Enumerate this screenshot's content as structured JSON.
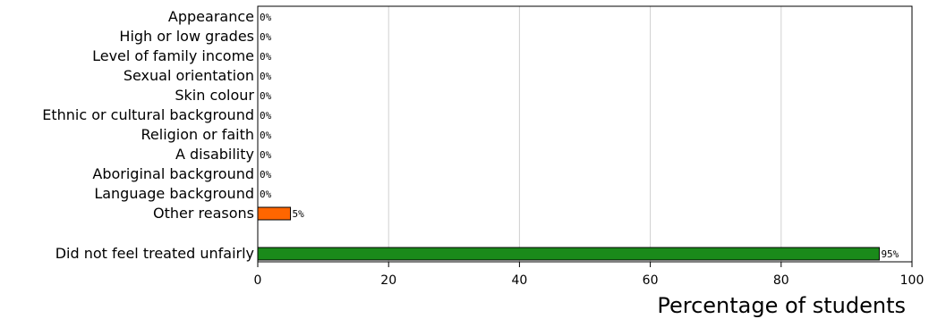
{
  "chart_data": {
    "type": "bar",
    "orientation": "horizontal",
    "categories": [
      "Appearance",
      "High or low grades",
      "Level of family income",
      "Sexual orientation",
      "Skin colour",
      "Ethnic or cultural background",
      "Religion or faith",
      "A disability",
      "Aboriginal background",
      "Language background",
      "Other reasons",
      "Did not feel treated unfairly"
    ],
    "values": [
      0,
      0,
      0,
      0,
      0,
      0,
      0,
      0,
      0,
      0,
      5,
      95
    ],
    "value_labels": [
      "0%",
      "0%",
      "0%",
      "0%",
      "0%",
      "0%",
      "0%",
      "0%",
      "0%",
      "0%",
      "5%",
      "95%"
    ],
    "bar_colors": [
      "#ff6600",
      "#ff6600",
      "#ff6600",
      "#ff6600",
      "#ff6600",
      "#ff6600",
      "#ff6600",
      "#ff6600",
      "#ff6600",
      "#ff6600",
      "#ff6600",
      "#1a8a1a"
    ],
    "xlabel": "Percentage of students",
    "xlim": [
      0,
      100
    ],
    "xticks": [
      0,
      20,
      40,
      60,
      80,
      100
    ],
    "grid": true,
    "title": "",
    "ylabel": ""
  }
}
